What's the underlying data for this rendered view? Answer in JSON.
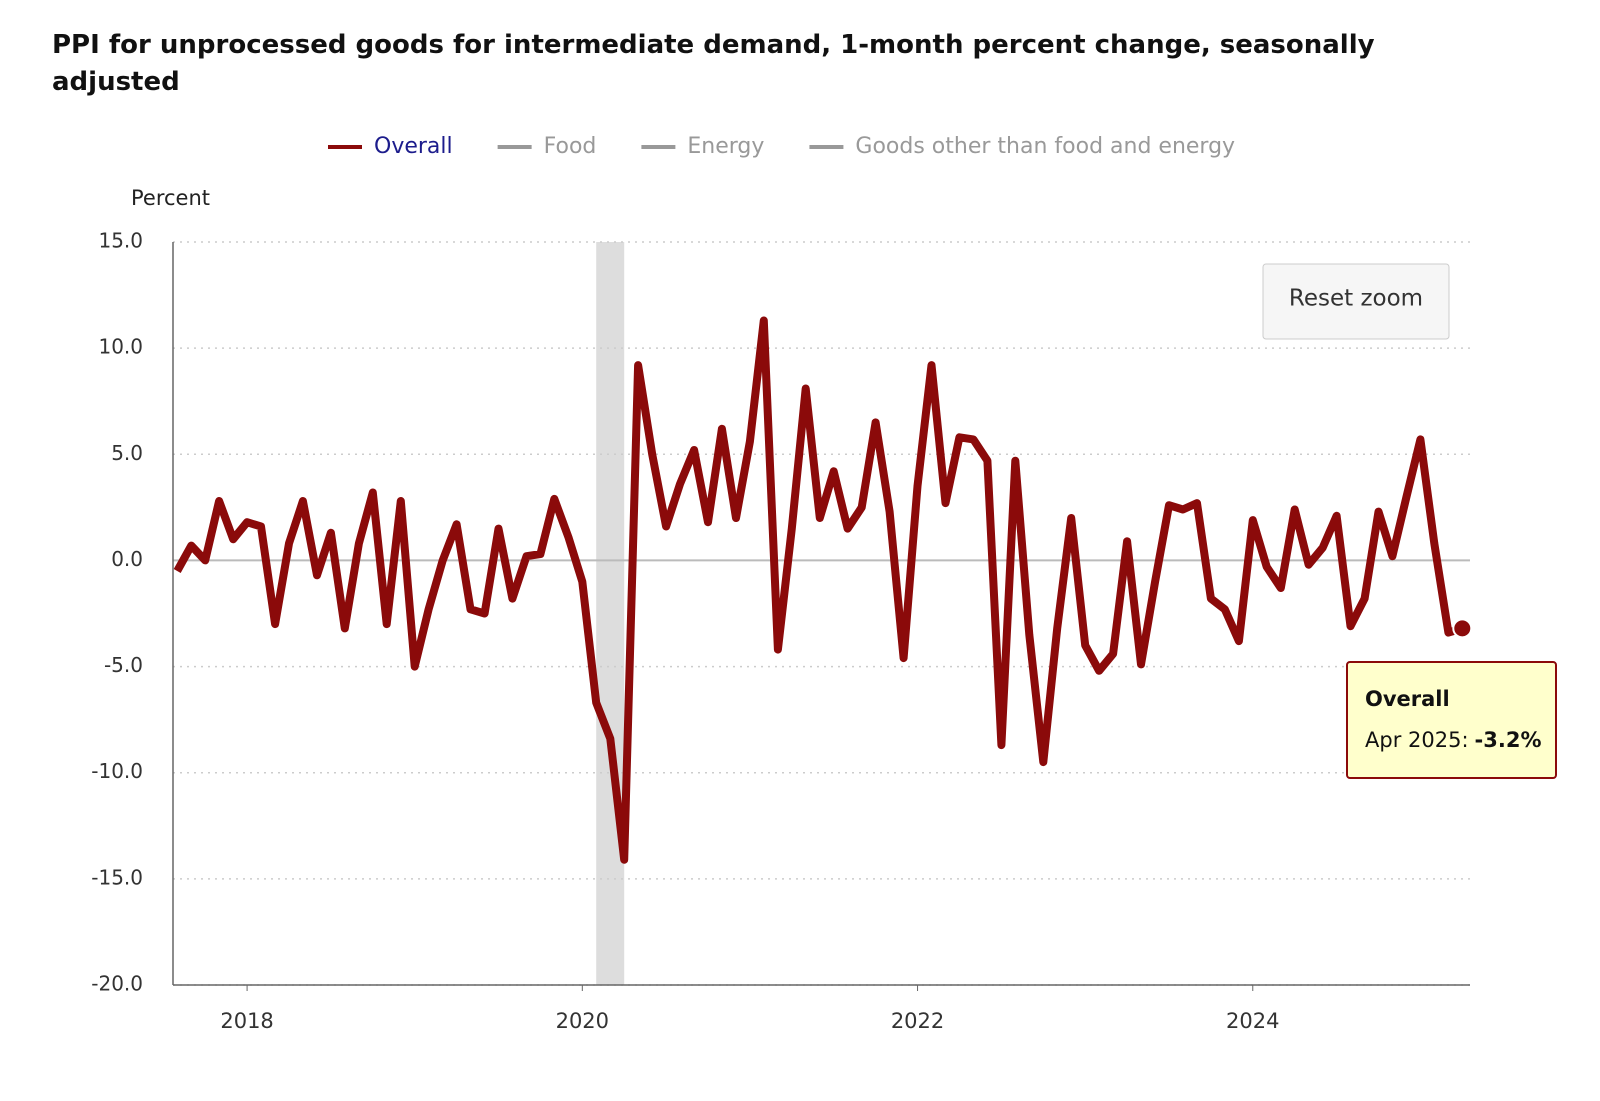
{
  "chart_data": {
    "type": "line",
    "title": "PPI for unprocessed goods for intermediate demand, 1-month percent change, seasonally adjusted",
    "y_axis_label": "Percent",
    "reset_button": "Reset zoom",
    "legend_hidden": [
      {
        "name": "Food",
        "color": "#999999"
      },
      {
        "name": "Energy",
        "color": "#999999"
      },
      {
        "name": "Goods other than food and energy",
        "color": "#999999"
      }
    ],
    "tooltip": {
      "title": "Overall",
      "date": "Apr 2025",
      "value": "-3.2%"
    },
    "shaded_range": [
      2020.083,
      2020.25
    ],
    "xlim": [
      2017.558,
      2025.296
    ],
    "xticks": [
      2018,
      2020,
      2022,
      2024
    ],
    "ylim": [
      -20,
      15
    ],
    "yticks": [
      {
        "value": 15,
        "label": "15.0"
      },
      {
        "value": 10,
        "label": "10.0"
      },
      {
        "value": 5,
        "label": "5.0"
      },
      {
        "value": 0,
        "label": "0.0"
      },
      {
        "value": -5,
        "label": "-5.0"
      },
      {
        "value": -10,
        "label": "-10.0"
      },
      {
        "value": -15,
        "label": "-15.0"
      },
      {
        "value": -20,
        "label": "-20.0"
      }
    ],
    "grid": true,
    "x": [
      2017.583,
      2017.667,
      2017.75,
      2017.833,
      2017.917,
      2018,
      2018.083,
      2018.167,
      2018.25,
      2018.333,
      2018.417,
      2018.5,
      2018.583,
      2018.667,
      2018.75,
      2018.833,
      2018.917,
      2019,
      2019.083,
      2019.167,
      2019.25,
      2019.333,
      2019.417,
      2019.5,
      2019.583,
      2019.667,
      2019.75,
      2019.833,
      2019.917,
      2020,
      2020.083,
      2020.167,
      2020.25,
      2020.333,
      2020.417,
      2020.5,
      2020.583,
      2020.667,
      2020.75,
      2020.833,
      2020.917,
      2021,
      2021.083,
      2021.167,
      2021.25,
      2021.333,
      2021.417,
      2021.5,
      2021.583,
      2021.667,
      2021.75,
      2021.833,
      2021.917,
      2022,
      2022.083,
      2022.167,
      2022.25,
      2022.333,
      2022.417,
      2022.5,
      2022.583,
      2022.667,
      2022.75,
      2022.833,
      2022.917,
      2023,
      2023.083,
      2023.167,
      2023.25,
      2023.333,
      2023.417,
      2023.5,
      2023.583,
      2023.667,
      2023.75,
      2023.833,
      2023.917,
      2024,
      2024.083,
      2024.167,
      2024.25,
      2024.333,
      2024.417,
      2024.5,
      2024.583,
      2024.667,
      2024.75,
      2024.833,
      2024.917,
      2025,
      2025.083,
      2025.167,
      2025.25
    ],
    "series": [
      {
        "name": "Overall",
        "color": "#8b0a0a",
        "legend_text_color": "#1c1c8c",
        "values": [
          -0.5,
          0.7,
          0.0,
          2.8,
          1.0,
          1.8,
          1.6,
          -3.0,
          0.8,
          2.8,
          -0.7,
          1.3,
          -3.2,
          0.8,
          3.2,
          -3.0,
          2.8,
          -5.0,
          -2.3,
          0.0,
          1.7,
          -2.3,
          -2.5,
          1.5,
          -1.8,
          0.2,
          0.3,
          2.9,
          1.1,
          -1.0,
          -6.7,
          -8.4,
          -14.1,
          9.2,
          5.0,
          1.6,
          3.6,
          5.2,
          1.8,
          6.2,
          2.0,
          5.6,
          11.3,
          -4.2,
          1.5,
          8.1,
          2.0,
          4.2,
          1.5,
          2.5,
          6.5,
          2.3,
          -4.6,
          3.5,
          9.2,
          2.7,
          5.8,
          5.7,
          4.7,
          -8.7,
          4.7,
          -3.5,
          -9.5,
          -3.2,
          2.0,
          -4.0,
          -5.2,
          -4.4,
          0.9,
          -4.9,
          -1.0,
          2.6,
          2.4,
          2.7,
          -1.8,
          -2.3,
          -3.8,
          1.9,
          -0.3,
          -1.3,
          2.4,
          -0.2,
          0.6,
          2.1,
          -3.1,
          -1.8,
          2.3,
          0.2,
          3.0,
          5.7,
          0.8,
          -3.4,
          -3.2
        ]
      }
    ]
  }
}
